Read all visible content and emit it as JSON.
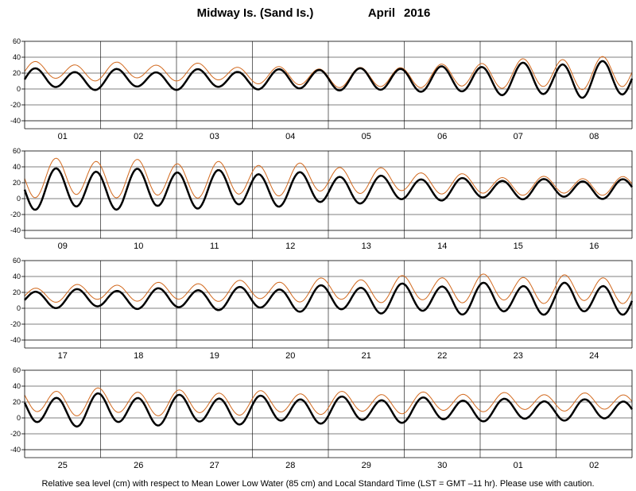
{
  "header": {
    "station": "Midway Is. (Sand Is.)",
    "month": "April",
    "year": "2016"
  },
  "footer": "Relative sea level (cm) with respect to Mean Lower Low Water (85 cm) and Local Standard Time (LST = GMT –11 hr). Please use with caution.",
  "colors": {
    "predicted": "#000000",
    "observed": "#d2691e",
    "grid": "#000000"
  },
  "chart_data": [
    {
      "type": "line",
      "panel": 1,
      "days": [
        "01",
        "02",
        "03",
        "04",
        "05",
        "06",
        "07",
        "08"
      ],
      "ylim": [
        -40,
        60
      ],
      "yticks": [
        -40,
        -20,
        0,
        20,
        40,
        60
      ],
      "series": [
        {
          "series_id": "predicted",
          "mean": 12,
          "semidiurnal_amp": [
            12,
            11,
            11,
            11,
            13,
            14,
            17,
            21
          ],
          "diurnal_amp": [
            3,
            3,
            3,
            2,
            1,
            1,
            2,
            3
          ],
          "phase_shift_h": [
            0,
            0.8,
            1.6,
            2.4,
            3.2,
            4.0,
            4.8,
            5.6
          ],
          "linewidth": 2.5
        },
        {
          "series_id": "observed",
          "mean_offset": [
            10,
            10,
            10,
            6,
            2,
            3,
            6,
            8
          ],
          "scale": 0.9,
          "linewidth": 1
        }
      ]
    },
    {
      "type": "line",
      "panel": 2,
      "days": [
        "09",
        "10",
        "11",
        "12",
        "13",
        "14",
        "15",
        "16"
      ],
      "ylim": [
        -40,
        60
      ],
      "yticks": [
        -40,
        -20,
        0,
        20,
        40,
        60
      ],
      "series": [
        {
          "series_id": "predicted",
          "mean": 12,
          "semidiurnal_amp": [
            24,
            24,
            23,
            21,
            18,
            14,
            12,
            11
          ],
          "diurnal_amp": [
            3,
            3,
            3,
            3,
            3,
            2,
            2,
            2
          ],
          "phase_shift_h": [
            6.4,
            7.2,
            8.0,
            8.8,
            9.6,
            10.4,
            11.2,
            12.0
          ],
          "linewidth": 2.5
        },
        {
          "series_id": "observed",
          "mean_offset": [
            14,
            14,
            12,
            12,
            13,
            10,
            5,
            4
          ],
          "scale": 0.95,
          "linewidth": 1
        }
      ]
    },
    {
      "type": "line",
      "panel": 3,
      "days": [
        "17",
        "18",
        "19",
        "20",
        "21",
        "22",
        "23",
        "24"
      ],
      "ylim": [
        -40,
        60
      ],
      "yticks": [
        -40,
        -20,
        0,
        20,
        40,
        60
      ],
      "series": [
        {
          "series_id": "predicted",
          "mean": 12,
          "semidiurnal_amp": [
            10,
            11,
            12,
            13,
            15,
            17,
            18,
            18
          ],
          "diurnal_amp": [
            2,
            2,
            2,
            3,
            3,
            3,
            3,
            3
          ],
          "phase_shift_h": [
            12.8,
            13.6,
            14.4,
            15.2,
            16.0,
            16.8,
            17.6,
            18.4
          ],
          "linewidth": 2.5
        },
        {
          "series_id": "observed",
          "mean_offset": [
            5,
            8,
            9,
            10,
            11,
            12,
            13,
            12
          ],
          "scale": 0.9,
          "linewidth": 1
        }
      ]
    },
    {
      "type": "line",
      "panel": 4,
      "days": [
        "25",
        "26",
        "27",
        "28",
        "29",
        "30",
        "01",
        "02"
      ],
      "ylim": [
        -40,
        60
      ],
      "yticks": [
        -40,
        -20,
        0,
        20,
        40,
        60
      ],
      "series": [
        {
          "series_id": "predicted",
          "mean": 10,
          "semidiurnal_amp": [
            18,
            18,
            17,
            16,
            15,
            14,
            13,
            12
          ],
          "diurnal_amp": [
            4,
            4,
            3,
            3,
            3,
            3,
            2,
            2
          ],
          "phase_shift_h": [
            19.2,
            20.0,
            20.8,
            21.6,
            22.4,
            23.2,
            24.0,
            24.8
          ],
          "linewidth": 2.5
        },
        {
          "series_id": "observed",
          "mean_offset": [
            11,
            10,
            9,
            9,
            9,
            9,
            10,
            10
          ],
          "scale": 0.85,
          "linewidth": 1
        }
      ]
    }
  ]
}
